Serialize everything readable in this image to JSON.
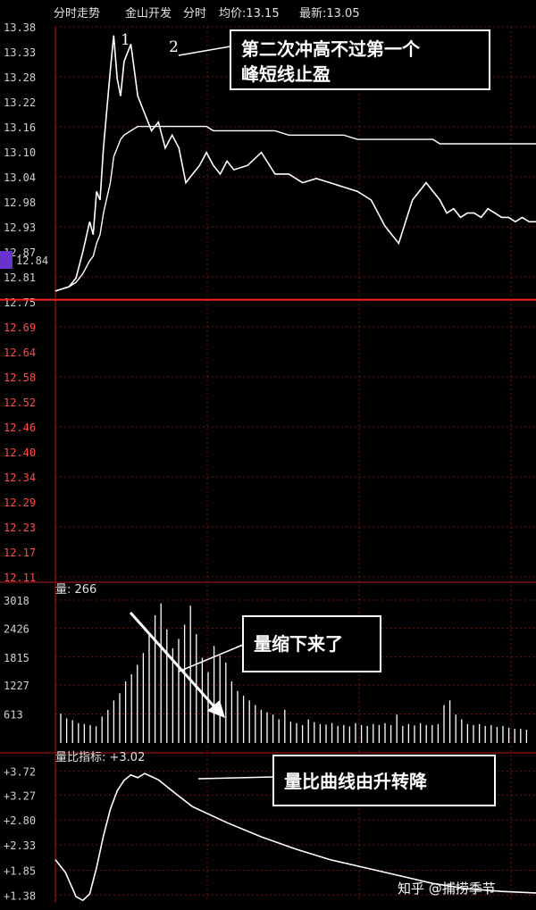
{
  "header": {
    "title": "分时走势",
    "stock": "金山开发",
    "mode": "分时",
    "avg_label": "均价:13.15",
    "last_label": "最新:13.05"
  },
  "colors": {
    "background": "#000000",
    "grid": "#7a1010",
    "price_line": "#ffffff",
    "prev_close_line": "#ff2020",
    "volume_bar": "#ffffff",
    "callout_border": "#ffffff",
    "arrow": "#ffffff",
    "current_price_tag": "#6633cc"
  },
  "annotations": {
    "peak1": "1",
    "peak2": "2",
    "callout_price": [
      "第二次冲高不过第一个",
      "峰短线止盈"
    ],
    "callout_volume": "量缩下来了",
    "callout_ratio": "量比曲线由升转降"
  },
  "watermark": "知乎 @捕捞季节",
  "volume_panel": {
    "label": "量: 266"
  },
  "ratio_panel": {
    "label": "量比指标: +3.02"
  },
  "chart_data": [
    {
      "type": "line",
      "name": "price",
      "prev_close": 12.75,
      "current_price_tag": "12.84",
      "y_ticks": [
        "13.38",
        "13.33",
        "13.28",
        "13.22",
        "13.16",
        "13.10",
        "13.04",
        "12.98",
        "12.93",
        "12.87",
        "12.81",
        "12.75",
        "12.69",
        "12.64",
        "12.58",
        "12.52",
        "12.46",
        "12.40",
        "12.34",
        "12.29",
        "12.23",
        "12.17",
        "12.11"
      ],
      "ylim": [
        12.11,
        13.38
      ],
      "grid": true,
      "x": [
        0,
        4,
        6,
        8,
        10,
        11,
        12,
        13,
        14,
        16,
        17,
        18,
        19,
        20,
        22,
        24,
        26,
        28,
        30,
        32,
        34,
        36,
        38,
        40,
        42,
        44,
        46,
        48,
        50,
        52,
        56,
        60,
        64,
        68,
        72,
        76,
        80,
        84,
        88,
        92,
        96,
        100,
        104,
        108,
        110,
        112,
        114,
        116,
        118,
        120,
        122,
        124,
        126,
        128,
        130,
        132,
        134,
        136,
        138,
        140
      ],
      "series": [
        {
          "name": "price",
          "values": [
            12.77,
            12.78,
            12.8,
            12.86,
            12.93,
            12.9,
            13.0,
            12.98,
            13.1,
            13.28,
            13.36,
            13.26,
            13.22,
            13.3,
            13.34,
            13.22,
            13.18,
            13.14,
            13.16,
            13.1,
            13.13,
            13.1,
            13.02,
            13.04,
            13.06,
            13.09,
            13.06,
            13.04,
            13.07,
            13.05,
            13.06,
            13.09,
            13.04,
            13.04,
            13.02,
            13.03,
            13.02,
            13.01,
            13.0,
            12.98,
            12.92,
            12.88,
            12.98,
            13.02,
            13.0,
            12.98,
            12.95,
            12.96,
            12.94,
            12.95,
            12.95,
            12.94,
            12.96,
            12.95,
            12.94,
            12.94,
            12.93,
            12.94,
            12.93,
            12.93
          ]
        },
        {
          "name": "average",
          "values": [
            12.77,
            12.78,
            12.79,
            12.81,
            12.84,
            12.85,
            12.88,
            12.9,
            12.95,
            13.02,
            13.08,
            13.1,
            13.12,
            13.13,
            13.14,
            13.15,
            13.15,
            13.15,
            13.15,
            13.15,
            13.15,
            13.15,
            13.15,
            13.15,
            13.15,
            13.15,
            13.14,
            13.14,
            13.14,
            13.14,
            13.14,
            13.14,
            13.14,
            13.13,
            13.13,
            13.13,
            13.13,
            13.13,
            13.12,
            13.12,
            13.12,
            13.12,
            13.12,
            13.12,
            13.12,
            13.11,
            13.11,
            13.11,
            13.11,
            13.11,
            13.11,
            13.11,
            13.11,
            13.11,
            13.11,
            13.11,
            13.11,
            13.11,
            13.11,
            13.11
          ]
        }
      ]
    },
    {
      "type": "bar",
      "name": "volume",
      "y_ticks": [
        "3018",
        "2426",
        "1815",
        "1227",
        "613"
      ],
      "ylim": [
        0,
        3018
      ],
      "values": [
        620,
        520,
        480,
        420,
        400,
        380,
        350,
        560,
        700,
        900,
        1050,
        1300,
        1450,
        1650,
        1900,
        2300,
        2700,
        2950,
        2400,
        2000,
        2200,
        2500,
        2900,
        2300,
        1800,
        1500,
        2050,
        1850,
        1700,
        1300,
        1100,
        1000,
        900,
        800,
        700,
        650,
        600,
        500,
        700,
        450,
        420,
        380,
        500,
        440,
        400,
        390,
        420,
        360,
        380,
        350,
        420,
        380,
        360,
        400,
        380,
        420,
        380,
        600,
        360,
        400,
        370,
        420,
        380,
        380,
        400,
        800,
        900,
        600,
        500,
        400,
        380,
        400,
        360,
        380,
        340,
        360,
        320,
        300,
        300,
        280
      ]
    },
    {
      "type": "line",
      "name": "volume_ratio",
      "y_ticks": [
        "+3.72",
        "+3.27",
        "+2.80",
        "+2.33",
        "+1.85",
        "+1.38"
      ],
      "ylim": [
        1.25,
        3.85
      ],
      "x": [
        0,
        3,
        6,
        8,
        10,
        12,
        14,
        16,
        18,
        20,
        22,
        24,
        26,
        28,
        30,
        35,
        40,
        50,
        60,
        70,
        80,
        90,
        100,
        110,
        120,
        130,
        140
      ],
      "values": [
        2.05,
        1.8,
        1.35,
        1.28,
        1.4,
        1.9,
        2.5,
        3.0,
        3.35,
        3.55,
        3.65,
        3.6,
        3.68,
        3.62,
        3.56,
        3.3,
        3.05,
        2.75,
        2.48,
        2.25,
        2.05,
        1.9,
        1.75,
        1.6,
        1.5,
        1.45,
        1.42
      ]
    }
  ]
}
